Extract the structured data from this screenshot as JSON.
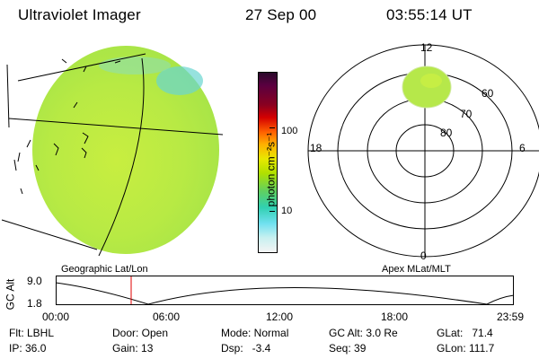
{
  "header": {
    "instrument": "Ultraviolet Imager",
    "date": "27 Sep 00",
    "time": "03:55:14 UT"
  },
  "colorbar": {
    "unit_label": "photon cm⁻²s⁻¹",
    "ticks": [
      "100",
      "10"
    ],
    "colors": [
      "#2a0a2a",
      "#7a0020",
      "#d40000",
      "#ff6000",
      "#ffb000",
      "#e0e000",
      "#a0e000",
      "#50d050",
      "#30d0b0",
      "#60e0f0",
      "#c0f0f0",
      "#f0f0f0"
    ]
  },
  "panels": {
    "left_caption": "Geographic Lat/Lon",
    "right_caption": "Apex MLat/MLT"
  },
  "polar": {
    "mlt_labels": {
      "top": "12",
      "left": "18",
      "right": "6",
      "bottom": "0"
    },
    "lat_labels": [
      "60",
      "70",
      "80"
    ]
  },
  "altitude_plot": {
    "ylabel": "GC Alt",
    "yticks": [
      "9.0",
      "1.8"
    ],
    "xticks": [
      "00:00",
      "06:00",
      "12:00",
      "18:00",
      "23:59"
    ],
    "marker_time": "03:55"
  },
  "info": {
    "flt": "Flt: LBHL",
    "ip": "IP: 36.0",
    "door": "Door: Open",
    "gain": "Gain: 13",
    "mode": "Mode: Normal",
    "dsp": "Dsp:   -3.4",
    "gcalt": "GC Alt: 3.0 Re",
    "seq": "Seq: 39",
    "glat": "GLat:   71.4",
    "glon": "GLon: 111.7"
  }
}
